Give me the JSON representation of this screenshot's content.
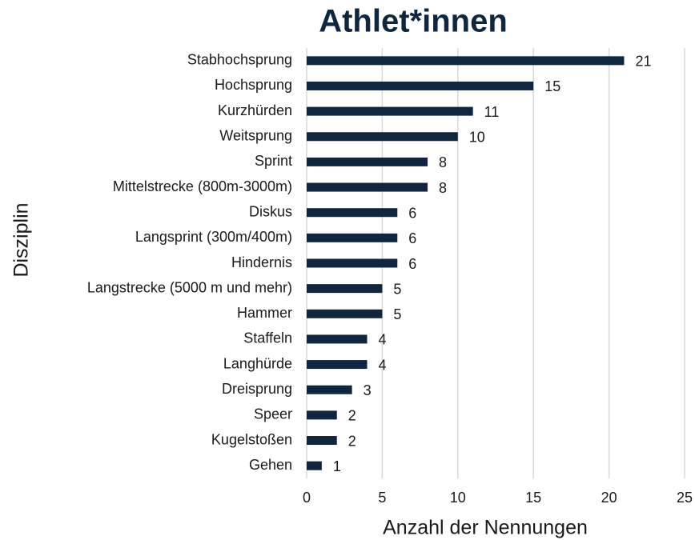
{
  "chart_data": {
    "type": "bar",
    "orientation": "horizontal",
    "title": "Athlet*innen",
    "x_label": "Anzahl der Nennungen",
    "y_label": "Disziplin",
    "categories": [
      "Stabhochsprung",
      "Hochsprung",
      "Kurzhürden",
      "Weitsprung",
      "Sprint",
      "Mittelstrecke (800m-3000m)",
      "Diskus",
      "Langsprint (300m/400m)",
      "Hindernis",
      "Langstrecke (5000 m und mehr)",
      "Hammer",
      "Staffeln",
      "Langhürde",
      "Dreisprung",
      "Speer",
      "Kugelstoßen",
      "Gehen"
    ],
    "values": [
      21,
      15,
      11,
      10,
      8,
      8,
      6,
      6,
      6,
      5,
      5,
      4,
      4,
      3,
      2,
      2,
      1
    ],
    "color": "#0f2640",
    "xlim": [
      0,
      25
    ],
    "xticks": [
      0,
      5,
      10,
      15,
      20,
      25
    ],
    "grid": true
  }
}
